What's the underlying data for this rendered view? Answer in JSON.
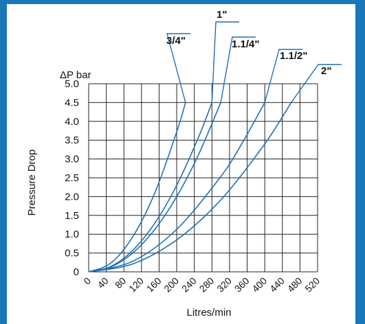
{
  "colors": {
    "background": "#1a78b9",
    "panel": "#ffffff",
    "grid": "#222222",
    "curve": "#1f6fb5",
    "text": "#111111"
  },
  "chart_data": {
    "type": "line",
    "title": "",
    "xlabel": "Litres/min",
    "ylabel": "Pressure Drop",
    "y_unit_label": "ΔP bar",
    "xlim": [
      0,
      520
    ],
    "ylim": [
      0,
      5.0
    ],
    "x_ticks": [
      "0",
      "40",
      "80",
      "120",
      "160",
      "200",
      "240",
      "280",
      "320",
      "360",
      "400",
      "440",
      "480",
      "520"
    ],
    "y_ticks": [
      "0",
      "0.5",
      "1.0",
      "1.5",
      "2.0",
      "2.5",
      "3.0",
      "3.5",
      "4.0",
      "4.5",
      "5.0"
    ],
    "grid": true,
    "series": [
      {
        "name": "3/4\"",
        "x": [
          0,
          50,
          100,
          150,
          200,
          220
        ],
        "y": [
          0,
          0.23,
          0.93,
          2.09,
          3.72,
          4.5
        ]
      },
      {
        "name": "1\"",
        "x": [
          0,
          50,
          100,
          150,
          200,
          250,
          280
        ],
        "y": [
          0,
          0.14,
          0.57,
          1.29,
          2.3,
          3.59,
          4.5
        ]
      },
      {
        "name": "1.1/4\"",
        "x": [
          0,
          50,
          100,
          150,
          200,
          250,
          300
        ],
        "y": [
          0,
          0.125,
          0.5,
          1.125,
          2.0,
          3.125,
          4.5
        ]
      },
      {
        "name": "1.1/2\"",
        "x": [
          0,
          100,
          200,
          300,
          350,
          400
        ],
        "y": [
          0,
          0.28,
          1.13,
          2.53,
          3.45,
          4.5
        ]
      },
      {
        "name": "2\"",
        "x": [
          0,
          100,
          200,
          300,
          400,
          460
        ],
        "y": [
          0,
          0.21,
          0.85,
          1.91,
          3.4,
          4.5
        ]
      }
    ]
  }
}
